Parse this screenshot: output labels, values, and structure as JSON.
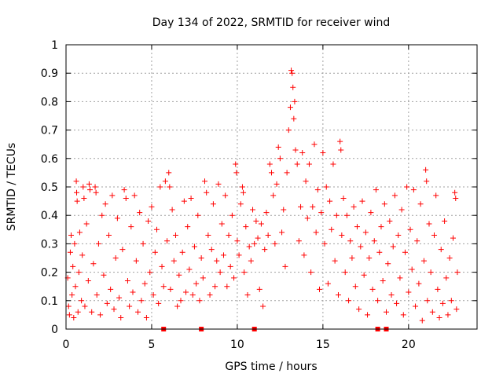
{
  "chart_data": {
    "type": "scatter",
    "title": "Day 134 of 2022, SRMTID for receiver wind",
    "xlabel": "GPS time / hours",
    "ylabel": "SRMTID / TECUs",
    "xlim": [
      0,
      24
    ],
    "ylim": [
      0,
      1
    ],
    "xticks": [
      0,
      5,
      10,
      15,
      20
    ],
    "xtick_labels": [
      "0",
      "5",
      "10",
      "15",
      "20"
    ],
    "yticks": [
      0,
      0.1,
      0.2,
      0.3,
      0.4,
      0.5,
      0.6,
      0.7,
      0.8,
      0.9,
      1
    ],
    "ytick_labels": [
      "0",
      "0.1",
      "0.2",
      "0.3",
      "0.4",
      "0.5",
      "0.6",
      "0.7",
      "0.8",
      "0.9",
      "1"
    ],
    "grid": true,
    "marker": "+",
    "color": "#ff0000",
    "data_gap_markers_x": [
      5.7,
      7.9,
      11.0,
      18.2,
      18.7
    ],
    "series": [
      {
        "name": "SRMTID",
        "points": [
          [
            0.1,
            0.18
          ],
          [
            0.15,
            0.08
          ],
          [
            0.2,
            0.05
          ],
          [
            0.25,
            0.27
          ],
          [
            0.3,
            0.33
          ],
          [
            0.35,
            0.12
          ],
          [
            0.4,
            0.22
          ],
          [
            0.45,
            0.04
          ],
          [
            0.5,
            0.3
          ],
          [
            0.55,
            0.15
          ],
          [
            0.6,
            0.52
          ],
          [
            0.62,
            0.48
          ],
          [
            0.65,
            0.45
          ],
          [
            0.7,
            0.06
          ],
          [
            0.75,
            0.2
          ],
          [
            0.8,
            0.34
          ],
          [
            0.9,
            0.1
          ],
          [
            0.95,
            0.26
          ],
          [
            1.0,
            0.5
          ],
          [
            1.05,
            0.46
          ],
          [
            1.1,
            0.08
          ],
          [
            1.2,
            0.37
          ],
          [
            1.3,
            0.17
          ],
          [
            1.35,
            0.51
          ],
          [
            1.4,
            0.49
          ],
          [
            1.5,
            0.06
          ],
          [
            1.6,
            0.23
          ],
          [
            1.7,
            0.5
          ],
          [
            1.75,
            0.48
          ],
          [
            1.8,
            0.12
          ],
          [
            1.9,
            0.3
          ],
          [
            2.0,
            0.05
          ],
          [
            2.1,
            0.4
          ],
          [
            2.2,
            0.19
          ],
          [
            2.3,
            0.44
          ],
          [
            2.4,
            0.09
          ],
          [
            2.5,
            0.33
          ],
          [
            2.6,
            0.14
          ],
          [
            2.7,
            0.47
          ],
          [
            2.8,
            0.07
          ],
          [
            2.9,
            0.25
          ],
          [
            3.0,
            0.39
          ],
          [
            3.1,
            0.11
          ],
          [
            3.2,
            0.04
          ],
          [
            3.3,
            0.28
          ],
          [
            3.4,
            0.49
          ],
          [
            3.5,
            0.46
          ],
          [
            3.6,
            0.17
          ],
          [
            3.7,
            0.08
          ],
          [
            3.8,
            0.36
          ],
          [
            3.9,
            0.13
          ],
          [
            4.0,
            0.47
          ],
          [
            4.1,
            0.24
          ],
          [
            4.2,
            0.06
          ],
          [
            4.3,
            0.41
          ],
          [
            4.4,
            0.1
          ],
          [
            4.5,
            0.3
          ],
          [
            4.6,
            0.16
          ],
          [
            4.7,
            0.04
          ],
          [
            4.8,
            0.38
          ],
          [
            4.9,
            0.2
          ],
          [
            5.0,
            0.43
          ],
          [
            5.1,
            0.12
          ],
          [
            5.2,
            0.27
          ],
          [
            5.3,
            0.35
          ],
          [
            5.4,
            0.09
          ],
          [
            5.5,
            0.5
          ],
          [
            5.6,
            0.22
          ],
          [
            5.7,
            0.15
          ],
          [
            5.8,
            0.52
          ],
          [
            5.9,
            0.31
          ],
          [
            6.0,
            0.55
          ],
          [
            6.05,
            0.5
          ],
          [
            6.1,
            0.14
          ],
          [
            6.2,
            0.42
          ],
          [
            6.3,
            0.24
          ],
          [
            6.4,
            0.33
          ],
          [
            6.5,
            0.08
          ],
          [
            6.6,
            0.19
          ],
          [
            6.7,
            0.1
          ],
          [
            6.8,
            0.27
          ],
          [
            6.9,
            0.45
          ],
          [
            7.0,
            0.13
          ],
          [
            7.1,
            0.36
          ],
          [
            7.2,
            0.21
          ],
          [
            7.3,
            0.46
          ],
          [
            7.4,
            0.12
          ],
          [
            7.5,
            0.29
          ],
          [
            7.6,
            0.16
          ],
          [
            7.7,
            0.4
          ],
          [
            7.8,
            0.1
          ],
          [
            7.9,
            0.25
          ],
          [
            8.0,
            0.18
          ],
          [
            8.1,
            0.52
          ],
          [
            8.2,
            0.48
          ],
          [
            8.3,
            0.33
          ],
          [
            8.4,
            0.12
          ],
          [
            8.5,
            0.28
          ],
          [
            8.6,
            0.44
          ],
          [
            8.7,
            0.15
          ],
          [
            8.8,
            0.24
          ],
          [
            8.9,
            0.51
          ],
          [
            9.0,
            0.2
          ],
          [
            9.1,
            0.37
          ],
          [
            9.2,
            0.26
          ],
          [
            9.3,
            0.47
          ],
          [
            9.4,
            0.15
          ],
          [
            9.5,
            0.33
          ],
          [
            9.6,
            0.22
          ],
          [
            9.7,
            0.4
          ],
          [
            9.8,
            0.18
          ],
          [
            9.9,
            0.58
          ],
          [
            9.95,
            0.55
          ],
          [
            10.0,
            0.31
          ],
          [
            10.1,
            0.26
          ],
          [
            10.2,
            0.44
          ],
          [
            10.3,
            0.5
          ],
          [
            10.35,
            0.48
          ],
          [
            10.4,
            0.2
          ],
          [
            10.5,
            0.36
          ],
          [
            10.6,
            0.12
          ],
          [
            10.7,
            0.29
          ],
          [
            10.8,
            0.24
          ],
          [
            10.9,
            0.42
          ],
          [
            11.0,
            0.3
          ],
          [
            11.1,
            0.38
          ],
          [
            11.2,
            0.32
          ],
          [
            11.3,
            0.14
          ],
          [
            11.4,
            0.37
          ],
          [
            11.5,
            0.08
          ],
          [
            11.6,
            0.28
          ],
          [
            11.7,
            0.41
          ],
          [
            11.8,
            0.33
          ],
          [
            11.9,
            0.58
          ],
          [
            12.0,
            0.55
          ],
          [
            12.1,
            0.47
          ],
          [
            12.2,
            0.3
          ],
          [
            12.3,
            0.51
          ],
          [
            12.4,
            0.64
          ],
          [
            12.5,
            0.6
          ],
          [
            12.6,
            0.34
          ],
          [
            12.7,
            0.42
          ],
          [
            12.8,
            0.22
          ],
          [
            12.9,
            0.55
          ],
          [
            13.0,
            0.7
          ],
          [
            13.1,
            0.78
          ],
          [
            13.15,
            0.91
          ],
          [
            13.2,
            0.9
          ],
          [
            13.25,
            0.85
          ],
          [
            13.3,
            0.74
          ],
          [
            13.35,
            0.8
          ],
          [
            13.4,
            0.63
          ],
          [
            13.5,
            0.58
          ],
          [
            13.6,
            0.31
          ],
          [
            13.7,
            0.43
          ],
          [
            13.8,
            0.62
          ],
          [
            13.9,
            0.26
          ],
          [
            14.0,
            0.52
          ],
          [
            14.1,
            0.39
          ],
          [
            14.2,
            0.58
          ],
          [
            14.3,
            0.2
          ],
          [
            14.4,
            0.43
          ],
          [
            14.5,
            0.65
          ],
          [
            14.6,
            0.34
          ],
          [
            14.7,
            0.49
          ],
          [
            14.8,
            0.14
          ],
          [
            14.9,
            0.41
          ],
          [
            15.0,
            0.62
          ],
          [
            15.1,
            0.3
          ],
          [
            15.2,
            0.5
          ],
          [
            15.3,
            0.16
          ],
          [
            15.4,
            0.45
          ],
          [
            15.5,
            0.35
          ],
          [
            15.6,
            0.58
          ],
          [
            15.7,
            0.24
          ],
          [
            15.8,
            0.4
          ],
          [
            15.9,
            0.12
          ],
          [
            16.0,
            0.66
          ],
          [
            16.05,
            0.63
          ],
          [
            16.1,
            0.33
          ],
          [
            16.2,
            0.46
          ],
          [
            16.3,
            0.2
          ],
          [
            16.4,
            0.4
          ],
          [
            16.5,
            0.1
          ],
          [
            16.6,
            0.31
          ],
          [
            16.7,
            0.25
          ],
          [
            16.8,
            0.43
          ],
          [
            16.9,
            0.15
          ],
          [
            17.0,
            0.36
          ],
          [
            17.1,
            0.07
          ],
          [
            17.2,
            0.29
          ],
          [
            17.3,
            0.45
          ],
          [
            17.4,
            0.19
          ],
          [
            17.5,
            0.34
          ],
          [
            17.6,
            0.05
          ],
          [
            17.7,
            0.25
          ],
          [
            17.8,
            0.41
          ],
          [
            17.9,
            0.14
          ],
          [
            18.0,
            0.31
          ],
          [
            18.1,
            0.49
          ],
          [
            18.2,
            0.1
          ],
          [
            18.3,
            0.27
          ],
          [
            18.4,
            0.36
          ],
          [
            18.5,
            0.17
          ],
          [
            18.6,
            0.44
          ],
          [
            18.7,
            0.06
          ],
          [
            18.8,
            0.23
          ],
          [
            18.9,
            0.38
          ],
          [
            19.0,
            0.12
          ],
          [
            19.1,
            0.29
          ],
          [
            19.2,
            0.47
          ],
          [
            19.3,
            0.09
          ],
          [
            19.4,
            0.33
          ],
          [
            19.5,
            0.18
          ],
          [
            19.6,
            0.42
          ],
          [
            19.7,
            0.05
          ],
          [
            19.8,
            0.27
          ],
          [
            19.9,
            0.5
          ],
          [
            20.0,
            0.13
          ],
          [
            20.1,
            0.35
          ],
          [
            20.2,
            0.21
          ],
          [
            20.3,
            0.49
          ],
          [
            20.4,
            0.08
          ],
          [
            20.5,
            0.31
          ],
          [
            20.6,
            0.16
          ],
          [
            20.7,
            0.44
          ],
          [
            20.8,
            0.03
          ],
          [
            20.9,
            0.24
          ],
          [
            21.0,
            0.56
          ],
          [
            21.05,
            0.52
          ],
          [
            21.1,
            0.1
          ],
          [
            21.2,
            0.37
          ],
          [
            21.3,
            0.2
          ],
          [
            21.4,
            0.06
          ],
          [
            21.5,
            0.33
          ],
          [
            21.6,
            0.47
          ],
          [
            21.7,
            0.14
          ],
          [
            21.8,
            0.04
          ],
          [
            21.9,
            0.28
          ],
          [
            22.0,
            0.09
          ],
          [
            22.1,
            0.38
          ],
          [
            22.2,
            0.18
          ],
          [
            22.3,
            0.05
          ],
          [
            22.4,
            0.25
          ],
          [
            22.5,
            0.1
          ],
          [
            22.6,
            0.32
          ],
          [
            22.7,
            0.48
          ],
          [
            22.75,
            0.46
          ],
          [
            22.8,
            0.07
          ],
          [
            22.85,
            0.2
          ]
        ]
      }
    ]
  }
}
